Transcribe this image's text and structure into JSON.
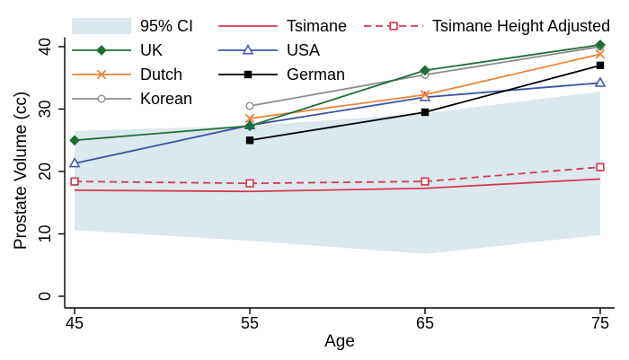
{
  "chart_data": {
    "type": "line",
    "title": "",
    "xlabel": "Age",
    "ylabel": "Prostate Volume (cc)",
    "x": [
      45,
      55,
      65,
      75
    ],
    "x_ticks": [
      "45",
      "55",
      "65",
      "75"
    ],
    "y_ticks": [
      "0",
      "10",
      "20",
      "30",
      "40"
    ],
    "x_range": [
      45,
      75
    ],
    "y_range": [
      0,
      41.5
    ],
    "grid": false,
    "legend_position": "top-left-inside",
    "ci_band": {
      "label": "95% CI",
      "fill": "#dbe8ee",
      "upper": [
        26.5,
        27.3,
        29.3,
        32.8
      ],
      "lower": [
        10.6,
        8.9,
        6.8,
        9.8
      ]
    },
    "series": [
      {
        "name": "Korean",
        "color": "#8c8c8c",
        "dash": "solid",
        "marker": "circle-open",
        "z": 0,
        "values": [
          null,
          30.5,
          35.5,
          40.0
        ]
      },
      {
        "name": "USA",
        "color": "#3b54a5",
        "dash": "solid",
        "marker": "triangle-open",
        "z": 1,
        "values": [
          21.3,
          27.4,
          31.9,
          34.2
        ]
      },
      {
        "name": "Dutch",
        "color": "#ec8538",
        "dash": "solid",
        "marker": "x",
        "z": 2,
        "values": [
          null,
          28.5,
          32.3,
          38.8
        ]
      },
      {
        "name": "German",
        "color": "#000000",
        "dash": "solid",
        "marker": "square-filled",
        "z": 3,
        "values": [
          null,
          25.0,
          29.5,
          37.0
        ]
      },
      {
        "name": "UK",
        "color": "#1f6e35",
        "dash": "solid",
        "marker": "diamond-filled",
        "z": 4,
        "values": [
          25.0,
          27.3,
          36.2,
          40.3
        ]
      },
      {
        "name": "Tsimane",
        "color": "#d23b50",
        "dash": "solid",
        "marker": "none",
        "z": 5,
        "values": [
          17.0,
          16.8,
          17.3,
          18.8
        ]
      },
      {
        "name": "Tsimane Height Adjusted",
        "color": "#d23b50",
        "dash": "dashed",
        "marker": "square-open",
        "z": 6,
        "values": [
          18.4,
          18.1,
          18.4,
          20.7
        ]
      }
    ],
    "legend": [
      {
        "label": "95% CI",
        "key": "ci",
        "row": 0,
        "col": 0
      },
      {
        "label": "Tsimane",
        "key": "Tsimane",
        "row": 0,
        "col": 1
      },
      {
        "label": "Tsimane Height Adjusted",
        "key": "Tsimane Height Adjusted",
        "row": 0,
        "col": 2
      },
      {
        "label": "UK",
        "key": "UK",
        "row": 1,
        "col": 0
      },
      {
        "label": "USA",
        "key": "USA",
        "row": 1,
        "col": 1
      },
      {
        "label": "Dutch",
        "key": "Dutch",
        "row": 2,
        "col": 0
      },
      {
        "label": "German",
        "key": "German",
        "row": 2,
        "col": 1
      },
      {
        "label": "Korean",
        "key": "Korean",
        "row": 3,
        "col": 0
      }
    ]
  }
}
